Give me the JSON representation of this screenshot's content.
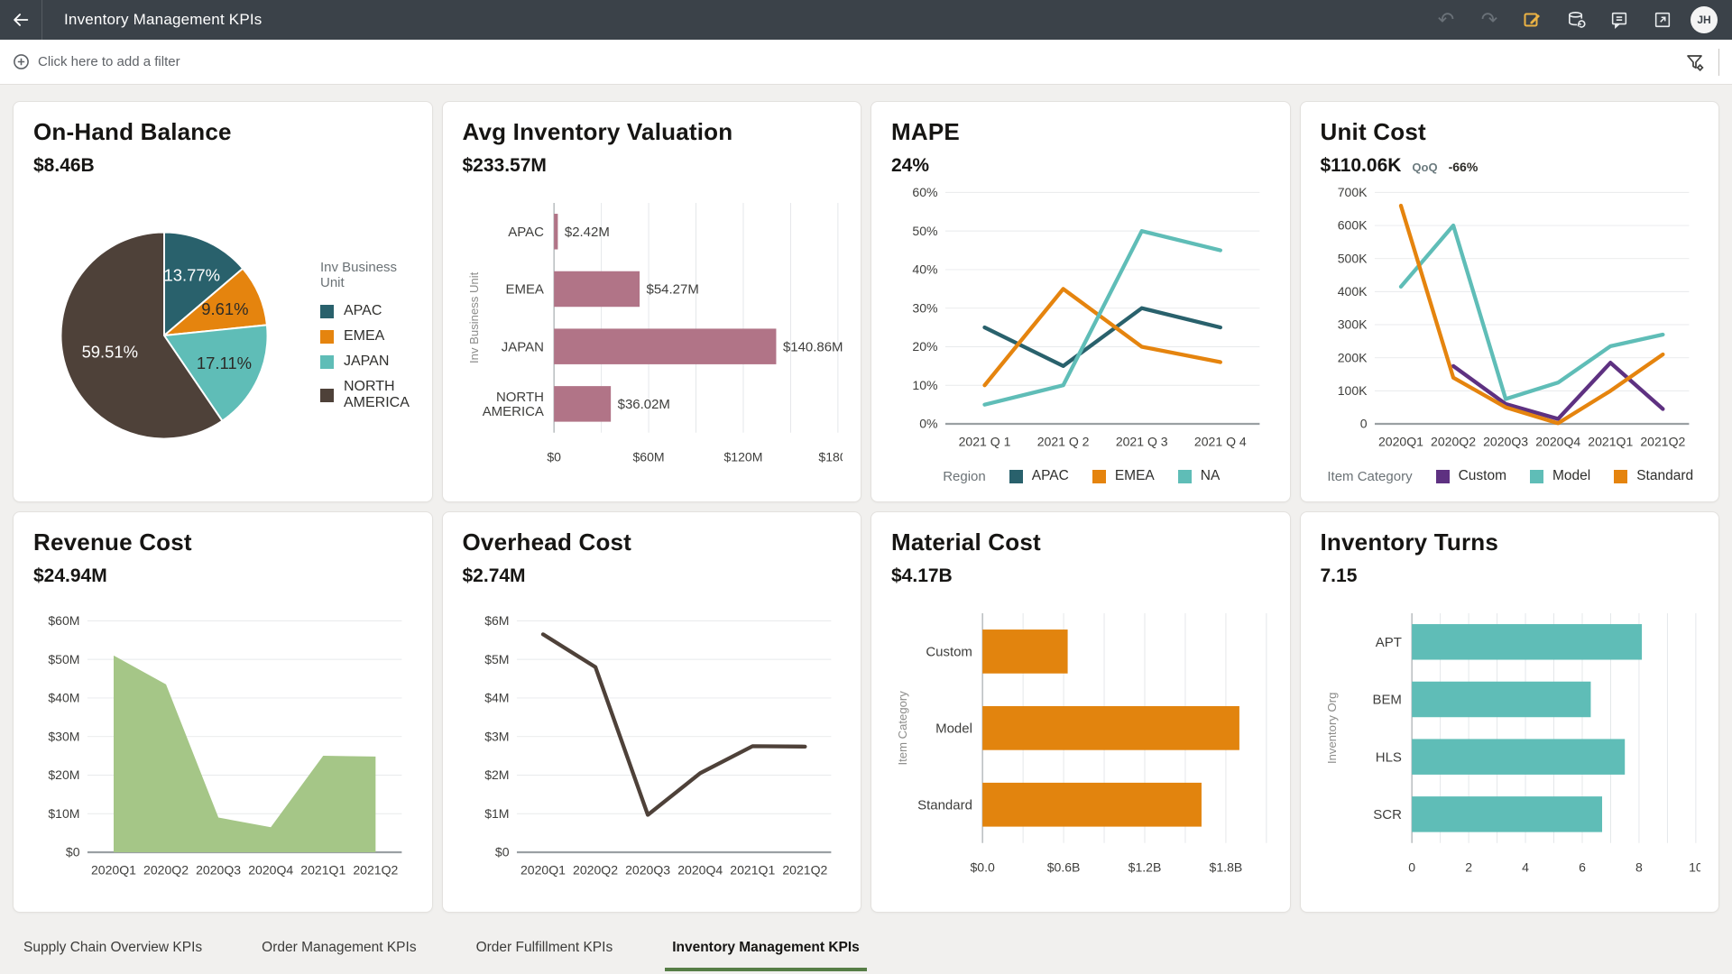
{
  "topbar": {
    "title": "Inventory Management KPIs",
    "avatar": "JH"
  },
  "filterbar": {
    "add_filter_label": "Click here to add a filter"
  },
  "tabs": [
    {
      "label": "Supply Chain Overview KPIs",
      "active": false
    },
    {
      "label": "Order Management KPIs",
      "active": false
    },
    {
      "label": "Order Fulfillment KPIs",
      "active": false
    },
    {
      "label": "Inventory Management KPIs",
      "active": true
    }
  ],
  "colors": {
    "teal_dark": "#29616c",
    "orange": "#e5840e",
    "teal_light": "#5fbdb7",
    "brown": "#4e4139",
    "mauve": "#b17487",
    "green_area": "#a5c687",
    "purple": "#5e3181",
    "tab_underline": "#567d46",
    "topbar_bg": "#3b4249",
    "edit_icon": "#ecb344"
  },
  "chart_data": [
    {
      "card": "On-Hand Balance",
      "kpi": "$8.46B",
      "type": "pie",
      "legend_title": "Inv Business Unit",
      "categories": [
        "APAC",
        "EMEA",
        "JAPAN",
        "NORTH AMERICA"
      ],
      "values": [
        13.77,
        9.61,
        17.11,
        59.51
      ],
      "labels": [
        "13.77%",
        "9.61%",
        "17.11%",
        "59.51%"
      ],
      "colors": [
        "#29616c",
        "#e5840e",
        "#5fbdb7",
        "#4e4139"
      ],
      "label_colors": [
        "#ffffff",
        "#2c2b27",
        "#2c2b27",
        "#ffffff"
      ]
    },
    {
      "card": "Avg Inventory Valuation",
      "kpi": "$233.57M",
      "type": "hbar",
      "ylabel": "Inv Business Unit",
      "categories": [
        "APAC",
        "EMEA",
        "JAPAN",
        "NORTH\nAMERICA"
      ],
      "values": [
        2.42,
        54.27,
        140.86,
        36.02
      ],
      "value_labels": [
        "$2.42M",
        "$54.27M",
        "$140.86M",
        "$36.02M"
      ],
      "color": "#b17487",
      "xmax": 180,
      "xgrid": [
        30,
        60,
        90,
        120,
        150,
        180
      ],
      "xticks": [
        {
          "v": 0,
          "label": "$0"
        },
        {
          "v": 60,
          "label": "$60M"
        },
        {
          "v": 120,
          "label": "$120M"
        },
        {
          "v": 180,
          "label": "$180M"
        }
      ]
    },
    {
      "card": "MAPE",
      "kpi": "24%",
      "type": "line",
      "legend_title": "Region",
      "x": [
        "2021 Q 1",
        "2021 Q 2",
        "2021 Q 3",
        "2021 Q 4"
      ],
      "ymax": 60,
      "yticks": [
        {
          "v": 0,
          "label": "0%"
        },
        {
          "v": 10,
          "label": "10%"
        },
        {
          "v": 20,
          "label": "20%"
        },
        {
          "v": 30,
          "label": "30%"
        },
        {
          "v": 40,
          "label": "40%"
        },
        {
          "v": 50,
          "label": "50%"
        },
        {
          "v": 60,
          "label": "60%"
        }
      ],
      "series": [
        {
          "name": "APAC",
          "color": "#29616c",
          "values": [
            25,
            15,
            30,
            25
          ]
        },
        {
          "name": "EMEA",
          "color": "#e5840e",
          "values": [
            10,
            35,
            20,
            16
          ]
        },
        {
          "name": "NA",
          "color": "#5fbdb7",
          "values": [
            5,
            10,
            50,
            45
          ]
        }
      ]
    },
    {
      "card": "Unit Cost",
      "kpi": "$110.06K",
      "qoq_label": "QoQ",
      "qoq_value": "-66%",
      "type": "line",
      "legend_title": "Item Category",
      "x": [
        "2020Q1",
        "2020Q2",
        "2020Q3",
        "2020Q4",
        "2021Q1",
        "2021Q2"
      ],
      "ymax": 700,
      "yticks": [
        {
          "v": 0,
          "label": "0"
        },
        {
          "v": 100,
          "label": "100K"
        },
        {
          "v": 200,
          "label": "200K"
        },
        {
          "v": 300,
          "label": "300K"
        },
        {
          "v": 400,
          "label": "400K"
        },
        {
          "v": 500,
          "label": "500K"
        },
        {
          "v": 600,
          "label": "600K"
        },
        {
          "v": 700,
          "label": "700K"
        }
      ],
      "series": [
        {
          "name": "Custom",
          "color": "#5e3181",
          "values": [
            null,
            175,
            60,
            15,
            185,
            45
          ]
        },
        {
          "name": "Model",
          "color": "#5fbdb7",
          "values": [
            415,
            600,
            75,
            125,
            235,
            270
          ]
        },
        {
          "name": "Standard",
          "color": "#e5840e",
          "values": [
            660,
            140,
            50,
            2,
            100,
            210
          ]
        }
      ]
    },
    {
      "card": "Revenue Cost",
      "kpi": "$24.94M",
      "type": "line",
      "area": true,
      "x": [
        "2020Q1",
        "2020Q2",
        "2020Q3",
        "2020Q4",
        "2021Q1",
        "2021Q2"
      ],
      "ymax": 60,
      "yticks": [
        {
          "v": 0,
          "label": "$0"
        },
        {
          "v": 10,
          "label": "$10M"
        },
        {
          "v": 20,
          "label": "$20M"
        },
        {
          "v": 30,
          "label": "$30M"
        },
        {
          "v": 40,
          "label": "$40M"
        },
        {
          "v": 50,
          "label": "$50M"
        },
        {
          "v": 60,
          "label": "$60M"
        }
      ],
      "series": [
        {
          "name": "Revenue Cost",
          "color": "#a5c687",
          "values": [
            51,
            43.5,
            9,
            6.5,
            25,
            24.8
          ]
        }
      ]
    },
    {
      "card": "Overhead Cost",
      "kpi": "$2.74M",
      "type": "line",
      "x": [
        "2020Q1",
        "2020Q2",
        "2020Q3",
        "2020Q4",
        "2021Q1",
        "2021Q2"
      ],
      "ymax": 6,
      "yticks": [
        {
          "v": 0,
          "label": "$0"
        },
        {
          "v": 1,
          "label": "$1M"
        },
        {
          "v": 2,
          "label": "$2M"
        },
        {
          "v": 3,
          "label": "$3M"
        },
        {
          "v": 4,
          "label": "$4M"
        },
        {
          "v": 5,
          "label": "$5M"
        },
        {
          "v": 6,
          "label": "$6M"
        }
      ],
      "series": [
        {
          "name": "Overhead Cost",
          "color": "#4e4139",
          "values": [
            5.65,
            4.8,
            0.97,
            2.05,
            2.75,
            2.74
          ]
        }
      ]
    },
    {
      "card": "Material Cost",
      "kpi": "$4.17B",
      "type": "hbar",
      "ylabel": "Item Category",
      "categories": [
        "Custom",
        "Model",
        "Standard"
      ],
      "values": [
        0.63,
        1.9,
        1.62
      ],
      "color": "#e2840e",
      "xmax": 2.1,
      "xgrid": [
        0.3,
        0.6,
        0.9,
        1.2,
        1.5,
        1.8,
        2.1
      ],
      "xticks": [
        {
          "v": 0,
          "label": "$0.0"
        },
        {
          "v": 0.6,
          "label": "$0.6B"
        },
        {
          "v": 1.2,
          "label": "$1.2B"
        },
        {
          "v": 1.8,
          "label": "$1.8B"
        }
      ]
    },
    {
      "card": "Inventory Turns",
      "kpi": "7.15",
      "type": "hbar",
      "ylabel": "Inventory Org",
      "categories": [
        "APT",
        "BEM",
        "HLS",
        "SCR"
      ],
      "values": [
        8.1,
        6.3,
        7.5,
        6.7
      ],
      "color": "#5fbdb7",
      "xmax": 10,
      "xgrid": [
        1,
        2,
        3,
        4,
        5,
        6,
        7,
        8,
        9,
        10
      ],
      "xticks": [
        {
          "v": 0,
          "label": "0"
        },
        {
          "v": 2,
          "label": "2"
        },
        {
          "v": 4,
          "label": "4"
        },
        {
          "v": 6,
          "label": "6"
        },
        {
          "v": 8,
          "label": "8"
        },
        {
          "v": 10,
          "label": "10"
        }
      ]
    }
  ]
}
